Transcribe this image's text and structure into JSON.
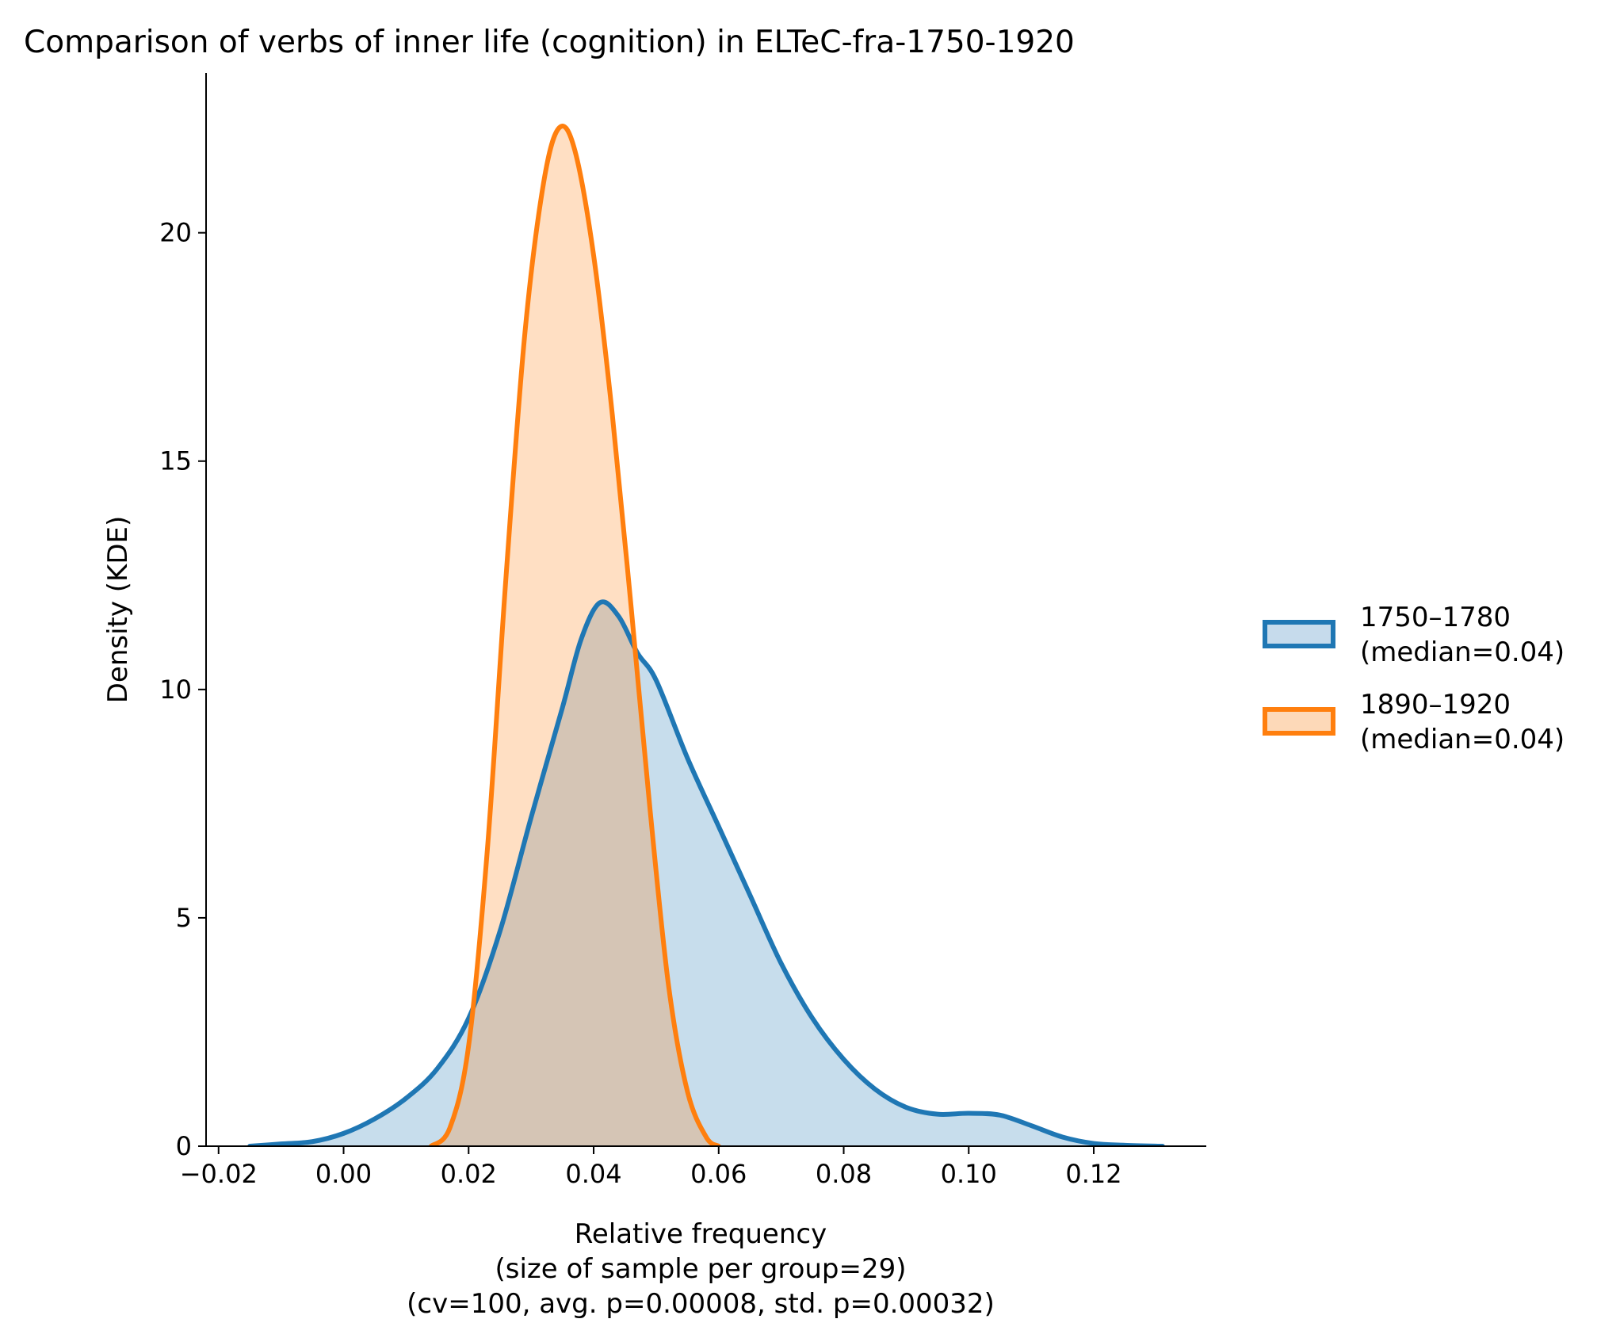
{
  "chart_data": {
    "type": "area",
    "title": "Comparison of verbs of inner life (cognition) in ELTeC-fra-1750-1920",
    "xlabel": [
      "Relative frequency",
      "(size of sample per group=29)",
      "(cv=100, avg. p=0.00008, std. p=0.00032)"
    ],
    "ylabel": "Density (KDE)",
    "xlim": [
      -0.022,
      0.138
    ],
    "ylim": [
      0,
      23.5
    ],
    "x_ticks": [
      -0.02,
      0.0,
      0.02,
      0.04,
      0.06,
      0.08,
      0.1,
      0.12
    ],
    "x_tick_labels": [
      "−0.02",
      "0.00",
      "0.02",
      "0.04",
      "0.06",
      "0.08",
      "0.10",
      "0.12"
    ],
    "y_ticks": [
      0,
      5,
      10,
      15,
      20
    ],
    "y_tick_labels": [
      "0",
      "5",
      "10",
      "15",
      "20"
    ],
    "grid": false,
    "legend_position": "center-right",
    "series": [
      {
        "name": "1750–1780",
        "legend_label": [
          "1750–1780",
          "(median=0.04)"
        ],
        "color": "#1f77b4",
        "fill_color": "#c6dbec",
        "points": [
          [
            -0.015,
            0.0
          ],
          [
            -0.01,
            0.05
          ],
          [
            -0.005,
            0.1
          ],
          [
            0.0,
            0.28
          ],
          [
            0.005,
            0.6
          ],
          [
            0.01,
            1.05
          ],
          [
            0.015,
            1.7
          ],
          [
            0.02,
            2.8
          ],
          [
            0.025,
            4.7
          ],
          [
            0.03,
            7.2
          ],
          [
            0.035,
            9.6
          ],
          [
            0.038,
            11.1
          ],
          [
            0.041,
            11.9
          ],
          [
            0.044,
            11.6
          ],
          [
            0.047,
            10.8
          ],
          [
            0.05,
            10.2
          ],
          [
            0.055,
            8.5
          ],
          [
            0.06,
            7.0
          ],
          [
            0.065,
            5.5
          ],
          [
            0.07,
            4.0
          ],
          [
            0.075,
            2.8
          ],
          [
            0.08,
            1.9
          ],
          [
            0.085,
            1.25
          ],
          [
            0.09,
            0.85
          ],
          [
            0.095,
            0.7
          ],
          [
            0.1,
            0.72
          ],
          [
            0.105,
            0.68
          ],
          [
            0.11,
            0.45
          ],
          [
            0.115,
            0.2
          ],
          [
            0.12,
            0.06
          ],
          [
            0.125,
            0.02
          ],
          [
            0.131,
            0.0
          ]
        ]
      },
      {
        "name": "1890–1920",
        "legend_label": [
          "1890–1920",
          "(median=0.04)"
        ],
        "color": "#ff7f0e",
        "fill_color": "#fdd9b8",
        "points": [
          [
            0.014,
            0.0
          ],
          [
            0.017,
            0.4
          ],
          [
            0.02,
            2.2
          ],
          [
            0.023,
            6.5
          ],
          [
            0.026,
            12.5
          ],
          [
            0.029,
            17.8
          ],
          [
            0.032,
            21.1
          ],
          [
            0.0345,
            22.3
          ],
          [
            0.037,
            21.8
          ],
          [
            0.04,
            19.5
          ],
          [
            0.043,
            16.0
          ],
          [
            0.046,
            11.8
          ],
          [
            0.049,
            7.4
          ],
          [
            0.052,
            3.5
          ],
          [
            0.055,
            1.2
          ],
          [
            0.058,
            0.2
          ],
          [
            0.06,
            0.0
          ]
        ]
      }
    ]
  }
}
